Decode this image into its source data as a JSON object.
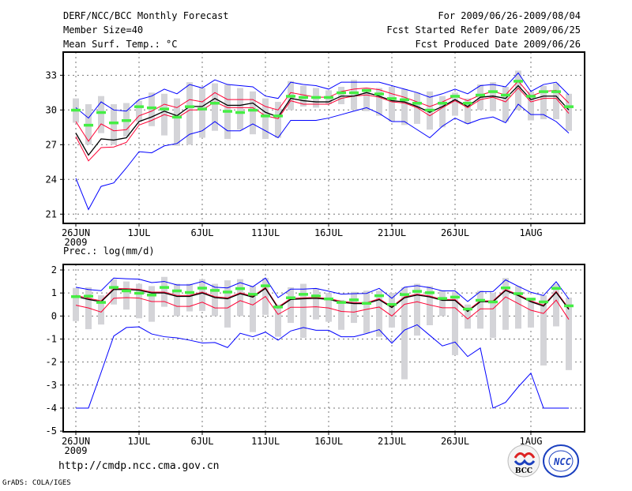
{
  "header": {
    "title": "DERF/NCC/BCC Monthly Forecast",
    "member_size": "Member Size=40",
    "variable": "Mean Surf. Temp.: °C",
    "period": "For 2009/06/26-2009/08/04",
    "start_date": "Fcst Started Refer Date 2009/06/25",
    "produced_date": "Fcst Produced Date 2009/06/26"
  },
  "footer": {
    "url": "http://cmdp.ncc.cma.gov.cn",
    "credit": "GrADS: COLA/IGES",
    "logo_bcc": "BCC",
    "logo_ncc": "NCC"
  },
  "colors": {
    "max_min": "#0000ff",
    "spread": "#ff0033",
    "mean": "#000000",
    "median": "#44ee44",
    "range": "#d4d4d8"
  },
  "chart_data": [
    {
      "type": "line",
      "title": "Mean Surf. Temp.: °C",
      "ylabel": "",
      "ylim": [
        20.2,
        35
      ],
      "yticks": [
        21,
        24,
        27,
        30,
        33
      ],
      "xtick_labels": [
        {
          "day": 0,
          "label": "26JUN"
        },
        {
          "day": 5,
          "label": "1JUL"
        },
        {
          "day": 10,
          "label": "6JUL"
        },
        {
          "day": 15,
          "label": "11JUL"
        },
        {
          "day": 20,
          "label": "16JUL"
        },
        {
          "day": 25,
          "label": "21JUL"
        },
        {
          "day": 30,
          "label": "26JUL"
        },
        {
          "day": 36,
          "label": "1AUG"
        }
      ],
      "year_label": "2009",
      "grid": true,
      "series": [
        {
          "name": "max",
          "color": "#0000ff",
          "values": [
            30.2,
            29.3,
            30.7,
            30.0,
            29.9,
            30.9,
            31.2,
            31.8,
            31.4,
            32.2,
            31.9,
            32.6,
            32.2,
            32.1,
            32.0,
            31.2,
            31.0,
            32.4,
            32.2,
            32.1,
            31.8,
            32.4,
            32.4,
            32.4,
            32.4,
            32.1,
            31.8,
            31.5,
            31.1,
            31.4,
            31.8,
            31.4,
            32.1,
            32.2,
            32.0,
            33.2,
            31.6,
            32.2,
            32.4,
            31.3
          ]
        },
        {
          "name": "min",
          "color": "#0000ff",
          "values": [
            24.1,
            21.4,
            23.4,
            23.7,
            25.0,
            26.4,
            26.3,
            26.9,
            27.1,
            27.9,
            28.2,
            29.0,
            28.2,
            28.2,
            28.8,
            28.2,
            27.6,
            29.1,
            29.1,
            29.1,
            29.3,
            29.6,
            29.9,
            30.2,
            29.7,
            29.0,
            29.0,
            28.3,
            27.6,
            28.6,
            29.3,
            28.8,
            29.2,
            29.4,
            28.9,
            30.5,
            29.6,
            29.6,
            29.0,
            28.0
          ]
        },
        {
          "name": "upper",
          "color": "#ff0033",
          "values": [
            29.0,
            27.3,
            28.8,
            28.2,
            28.3,
            29.5,
            29.9,
            30.5,
            30.2,
            30.9,
            30.7,
            31.5,
            30.9,
            30.9,
            30.9,
            30.3,
            30.0,
            31.5,
            31.3,
            31.1,
            31.1,
            31.6,
            31.8,
            31.9,
            31.75,
            31.4,
            31.1,
            30.7,
            30.3,
            30.7,
            31.2,
            30.8,
            31.3,
            31.6,
            31.3,
            32.5,
            31.2,
            31.6,
            31.7,
            30.6
          ]
        },
        {
          "name": "lower",
          "color": "#ff0033",
          "values": [
            27.7,
            25.6,
            26.75,
            26.8,
            27.2,
            28.7,
            29.1,
            29.6,
            29.3,
            30.0,
            30.0,
            30.7,
            30.2,
            30.2,
            30.2,
            29.5,
            29.25,
            30.8,
            30.5,
            30.5,
            30.5,
            31.0,
            31.2,
            31.3,
            31.1,
            30.7,
            30.6,
            30.2,
            29.5,
            30.2,
            30.8,
            30.2,
            30.9,
            31.1,
            30.7,
            31.9,
            30.7,
            31.0,
            31.0,
            29.7
          ]
        },
        {
          "name": "mean",
          "color": "#000000",
          "values": [
            28.0,
            26.1,
            27.5,
            27.4,
            27.6,
            29.0,
            29.4,
            29.9,
            29.5,
            30.3,
            30.3,
            31.0,
            30.4,
            30.4,
            30.6,
            29.8,
            29.4,
            31.0,
            30.8,
            30.7,
            30.7,
            31.2,
            31.2,
            31.5,
            31.2,
            30.8,
            30.7,
            30.3,
            29.8,
            30.3,
            30.9,
            30.3,
            31.1,
            31.2,
            31.0,
            32.1,
            30.9,
            31.2,
            31.2,
            30.0
          ]
        }
      ],
      "median": [
        30.0,
        28.7,
        29.8,
        28.9,
        29.1,
        30.3,
        30.2,
        30.1,
        29.4,
        30.3,
        30.1,
        30.6,
        29.9,
        29.8,
        30.0,
        29.5,
        29.5,
        31.2,
        31.1,
        31.1,
        31.1,
        31.5,
        31.5,
        31.7,
        31.4,
        31.0,
        30.9,
        30.6,
        30.0,
        30.6,
        31.2,
        30.6,
        31.3,
        31.6,
        31.3,
        32.5,
        31.2,
        31.6,
        31.6,
        30.3
      ],
      "range": [
        [
          28.9,
          31.0
        ],
        [
          27.0,
          30.5
        ],
        [
          28.0,
          31.2
        ],
        [
          27.0,
          30.5
        ],
        [
          27.7,
          30.6
        ],
        [
          29.0,
          30.8
        ],
        [
          28.6,
          31.5
        ],
        [
          27.8,
          31.4
        ],
        [
          26.9,
          31.0
        ],
        [
          27.0,
          32.4
        ],
        [
          27.6,
          31.9
        ],
        [
          28.2,
          32.3
        ],
        [
          27.5,
          32.2
        ],
        [
          28.3,
          31.9
        ],
        [
          27.9,
          31.6
        ],
        [
          27.5,
          31.0
        ],
        [
          27.6,
          30.7
        ],
        [
          30.0,
          32.5
        ],
        [
          30.3,
          32.1
        ],
        [
          30.2,
          31.9
        ],
        [
          30.5,
          31.7
        ],
        [
          30.5,
          32.0
        ],
        [
          30.0,
          32.6
        ],
        [
          29.9,
          31.9
        ],
        [
          29.5,
          31.9
        ],
        [
          29.0,
          32.0
        ],
        [
          28.7,
          31.8
        ],
        [
          28.8,
          31.5
        ],
        [
          28.3,
          31.6
        ],
        [
          28.5,
          31.2
        ],
        [
          29.5,
          31.5
        ],
        [
          28.8,
          31.0
        ],
        [
          30.0,
          32.2
        ],
        [
          29.9,
          32.4
        ],
        [
          29.0,
          32.0
        ],
        [
          30.0,
          33.4
        ],
        [
          29.1,
          31.6
        ],
        [
          29.2,
          32.1
        ],
        [
          29.2,
          32.3
        ],
        [
          28.2,
          31.4
        ]
      ]
    },
    {
      "type": "line",
      "title": "Prec.: log(mm/d)",
      "ylabel": "",
      "ylim": [
        -5.03,
        2.24
      ],
      "yticks": [
        -5,
        -4,
        -3,
        -2,
        -1,
        0,
        1,
        2
      ],
      "xtick_labels": [
        {
          "day": 0,
          "label": "26JUN"
        },
        {
          "day": 5,
          "label": "1JUL"
        },
        {
          "day": 10,
          "label": "6JUL"
        },
        {
          "day": 15,
          "label": "11JUL"
        },
        {
          "day": 20,
          "label": "16JUL"
        },
        {
          "day": 25,
          "label": "21JUL"
        },
        {
          "day": 30,
          "label": "26JUL"
        },
        {
          "day": 36,
          "label": "1AUG"
        }
      ],
      "year_label": "2009",
      "grid": true,
      "series": [
        {
          "name": "max",
          "color": "#0000ff",
          "values": [
            1.25,
            1.15,
            1.1,
            1.65,
            1.62,
            1.6,
            1.45,
            1.5,
            1.35,
            1.35,
            1.5,
            1.25,
            1.22,
            1.45,
            1.27,
            1.65,
            0.8,
            1.17,
            1.17,
            1.2,
            1.08,
            0.95,
            0.97,
            0.98,
            1.2,
            0.77,
            1.25,
            1.32,
            1.23,
            1.09,
            1.09,
            0.63,
            1.06,
            1.06,
            1.57,
            1.29,
            1.03,
            0.89,
            1.49,
            0.74
          ]
        },
        {
          "name": "min",
          "color": "#0000ff",
          "values": [
            -4,
            -4,
            -2.45,
            -0.87,
            -0.5,
            -0.47,
            -0.78,
            -0.9,
            -0.95,
            -1.05,
            -1.17,
            -1.15,
            -1.37,
            -0.75,
            -0.9,
            -0.7,
            -1.05,
            -0.65,
            -0.5,
            -0.62,
            -0.62,
            -0.9,
            -0.9,
            -0.76,
            -0.59,
            -1.18,
            -0.61,
            -0.38,
            -0.84,
            -1.3,
            -1.13,
            -1.76,
            -1.39,
            -4.0,
            -3.75,
            -3.08,
            -2.48,
            -4,
            -4,
            -4
          ]
        },
        {
          "name": "lower",
          "color": "#ff0033",
          "values": [
            0.47,
            0.35,
            0.17,
            0.77,
            0.8,
            0.78,
            0.63,
            0.63,
            0.42,
            0.42,
            0.6,
            0.35,
            0.35,
            0.67,
            0.48,
            0.85,
            0.07,
            0.38,
            0.38,
            0.4,
            0.35,
            0.2,
            0.17,
            0.29,
            0.39,
            0.0,
            0.51,
            0.62,
            0.48,
            0.36,
            0.36,
            -0.13,
            0.31,
            0.31,
            0.83,
            0.54,
            0.25,
            0.11,
            0.69,
            -0.15
          ]
        },
        {
          "name": "upper",
          "color": "#ff0033",
          "values": [
            0.9,
            0.77,
            0.66,
            1.19,
            1.19,
            1.16,
            1.04,
            1.04,
            0.89,
            0.89,
            1.04,
            0.84,
            0.79,
            1.01,
            0.86,
            1.24,
            0.39,
            0.76,
            0.79,
            0.81,
            0.76,
            0.64,
            0.58,
            0.58,
            0.75,
            0.41,
            0.83,
            0.95,
            0.87,
            0.72,
            0.72,
            0.24,
            0.66,
            0.66,
            1.15,
            0.93,
            0.66,
            0.47,
            1.07,
            0.33
          ]
        },
        {
          "name": "mean",
          "color": "#000000",
          "values": [
            0.85,
            0.72,
            0.62,
            1.15,
            1.15,
            1.12,
            1.0,
            1.0,
            0.85,
            0.85,
            1.0,
            0.8,
            0.75,
            0.97,
            0.82,
            1.2,
            0.35,
            0.72,
            0.75,
            0.77,
            0.72,
            0.6,
            0.54,
            0.54,
            0.71,
            0.37,
            0.79,
            0.91,
            0.83,
            0.68,
            0.68,
            0.2,
            0.62,
            0.62,
            1.11,
            0.89,
            0.62,
            0.43,
            1.03,
            0.29
          ]
        }
      ],
      "median": [
        0.85,
        0.87,
        0.6,
        1.25,
        1.1,
        1.0,
        0.92,
        1.25,
        1.1,
        1.03,
        1.22,
        1.12,
        1.05,
        1.2,
        0.95,
        1.32,
        0.4,
        0.8,
        0.95,
        0.88,
        0.75,
        0.6,
        0.71,
        0.56,
        0.89,
        0.51,
        0.94,
        1.08,
        1.02,
        0.77,
        0.83,
        0.31,
        0.69,
        0.62,
        1.23,
        0.98,
        0.74,
        0.62,
        1.21,
        0.45
      ],
      "range": [
        [
          -0.22,
          1.22
        ],
        [
          -0.57,
          1.25
        ],
        [
          -0.37,
          0.9
        ],
        [
          0.5,
          1.6
        ],
        [
          0.28,
          1.5
        ],
        [
          -0.1,
          1.4
        ],
        [
          -0.25,
          1.3
        ],
        [
          0.4,
          1.7
        ],
        [
          0.0,
          1.4
        ],
        [
          0.2,
          1.4
        ],
        [
          0.22,
          1.6
        ],
        [
          0.0,
          1.4
        ],
        [
          -0.5,
          1.55
        ],
        [
          0.0,
          1.6
        ],
        [
          -0.7,
          1.3
        ],
        [
          0.05,
          1.65
        ],
        [
          -0.9,
          0.5
        ],
        [
          -0.3,
          1.25
        ],
        [
          -0.95,
          1.4
        ],
        [
          -0.15,
          1.2
        ],
        [
          -0.25,
          1.0
        ],
        [
          -0.6,
          0.7
        ],
        [
          -0.3,
          1.05
        ],
        [
          -0.75,
          1.1
        ],
        [
          -0.9,
          1.1
        ],
        [
          -0.5,
          1.0
        ],
        [
          -2.75,
          1.25
        ],
        [
          -0.85,
          1.4
        ],
        [
          -0.4,
          1.3
        ],
        [
          0.0,
          1.1
        ],
        [
          -1.7,
          1.05
        ],
        [
          -0.55,
          0.5
        ],
        [
          -0.55,
          1.1
        ],
        [
          -0.95,
          1.0
        ],
        [
          -0.6,
          1.65
        ],
        [
          -0.55,
          1.3
        ],
        [
          -0.5,
          0.8
        ],
        [
          -2.15,
          0.9
        ],
        [
          -0.45,
          1.4
        ],
        [
          -2.35,
          0.8
        ]
      ]
    }
  ]
}
